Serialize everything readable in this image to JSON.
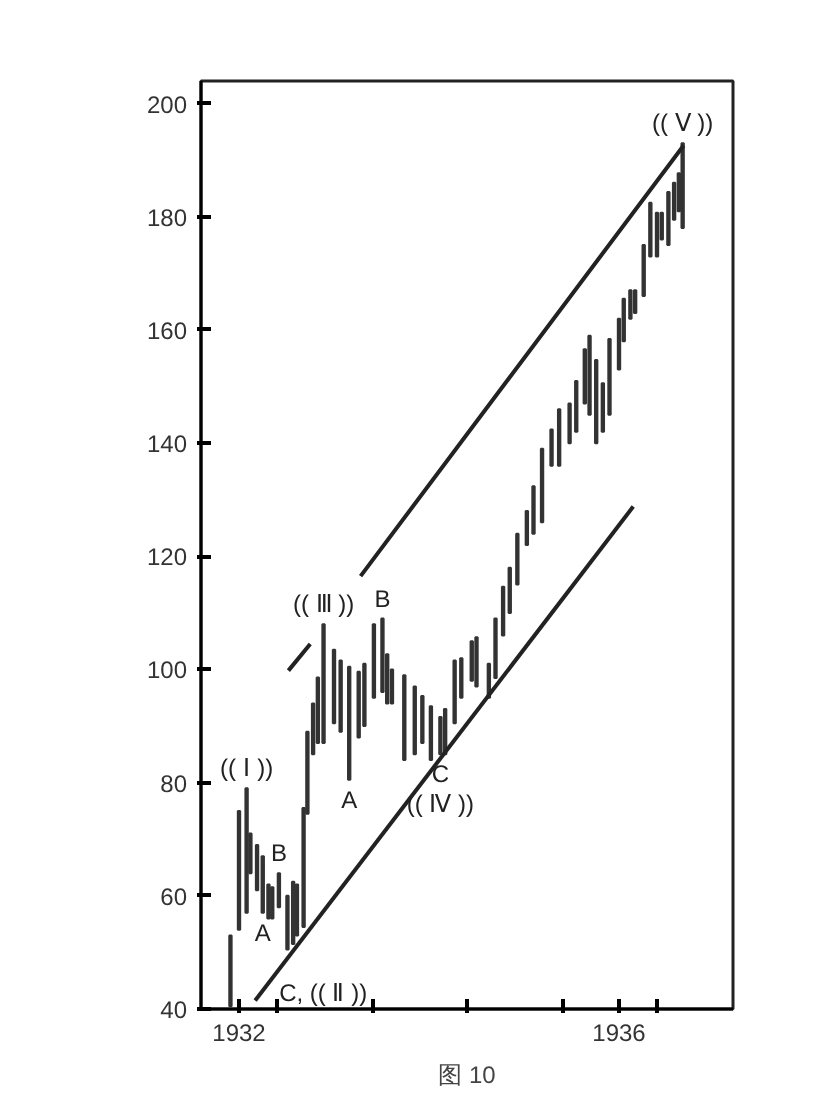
{
  "chart_data": {
    "type": "bar",
    "title": "图 10",
    "xlim": [
      1931.6,
      1937.2
    ],
    "xticks": [
      1932,
      {
        "value": 1932.4,
        "label": null
      },
      {
        "value": 1933.4,
        "label": null
      },
      {
        "value": 1934.4,
        "label": null
      },
      {
        "value": 1935.4,
        "label": null
      },
      1936,
      {
        "value": 1936.4,
        "label": null
      }
    ],
    "ylim": [
      40,
      204
    ],
    "yticks": [
      40,
      60,
      80,
      100,
      120,
      140,
      160,
      180,
      200
    ],
    "series": [
      {
        "color": "#333333",
        "x": [
          1931.91,
          1932.0,
          1932.08,
          1932.12,
          1932.19,
          1932.25,
          1932.31,
          1932.35,
          1932.42,
          1932.51,
          1932.57,
          1932.61,
          1932.68,
          1932.72,
          1932.78,
          1932.83,
          1932.89,
          1933.0,
          1933.07,
          1933.16,
          1933.26,
          1933.32,
          1933.42,
          1933.51,
          1933.56,
          1933.61,
          1933.74,
          1933.85,
          1933.93,
          1934.02,
          1934.12,
          1934.17,
          1934.27,
          1934.34,
          1934.45,
          1934.5,
          1934.63,
          1934.7,
          1934.78,
          1934.85,
          1934.93,
          1935.03,
          1935.1,
          1935.19,
          1935.29,
          1935.37,
          1935.48,
          1935.55,
          1935.64,
          1935.69,
          1935.76,
          1935.83,
          1935.9,
          1936.0,
          1936.05,
          1936.12,
          1936.17,
          1936.26,
          1936.33,
          1936.4,
          1936.45,
          1936.52,
          1936.58,
          1936.63,
          1936.67
        ],
        "base": [
          40.5,
          54,
          57,
          64,
          61,
          57,
          56,
          56,
          58,
          50.5,
          51.5,
          53,
          54.5,
          74.5,
          85,
          87,
          87,
          90.5,
          89,
          80.5,
          88,
          90,
          95,
          96,
          94,
          94,
          84,
          85,
          87,
          84,
          85,
          85,
          90.5,
          95,
          98,
          97,
          95,
          98.5,
          106,
          110,
          115,
          122,
          124,
          126,
          136,
          136,
          140,
          142,
          147,
          145,
          140,
          142,
          145,
          153,
          158,
          162,
          163,
          166,
          173,
          173,
          176,
          175,
          179.5,
          181,
          178
        ],
        "values": [
          12.5,
          21,
          22,
          7,
          8,
          10,
          6,
          5.5,
          6,
          9.5,
          11,
          9,
          21,
          14.5,
          9,
          11.6,
          21,
          13,
          12.6,
          20,
          11.6,
          11,
          13,
          13,
          8.7,
          6,
          15,
          12,
          8.3,
          9.5,
          6.6,
          8,
          11.1,
          7,
          7,
          8.7,
          6,
          10.5,
          8.6,
          8,
          9,
          6,
          8.4,
          13,
          6.4,
          10,
          7,
          9,
          9.6,
          14,
          14.7,
          8.6,
          13.4,
          9,
          7.5,
          5,
          4,
          9,
          9.5,
          7.7,
          4.7,
          9.4,
          6.5,
          6.7,
          15
        ]
      },
      {
        "type": "line",
        "color": "#222222",
        "x": [
          1932.52,
          1932.75,
          1933.0,
          1933.28,
          1936.68
        ],
        "values": [
          99.8,
          104.5,
          null,
          116.5,
          192.6
        ]
      },
      {
        "type": "line",
        "color": "#222222",
        "x": [
          1932.17,
          1936.15
        ],
        "values": [
          41.5,
          128.8
        ]
      }
    ],
    "annotations": [
      {
        "text": "(( Ⅴ ))",
        "x": 1936.67,
        "y": 193
      },
      {
        "text": "(( Ⅲ ))",
        "x": 1932.89,
        "y": 108
      },
      {
        "text": "B",
        "x": 1933.51,
        "y": 109
      },
      {
        "text": "(( Ⅰ ))",
        "x": 1932.08,
        "y": 79
      },
      {
        "text": "B",
        "x": 1932.42,
        "y": 64
      },
      {
        "text": "A",
        "x": 1932.25,
        "y": 57
      },
      {
        "text": "A",
        "x": 1933.16,
        "y": 80.5
      },
      {
        "text": "C",
        "x": 1934.12,
        "y": 85
      },
      {
        "text": "(( Ⅳ ))",
        "x": 1934.12,
        "y": 85
      },
      {
        "text": "C, (( Ⅱ ))",
        "x": 1932.17,
        "y": 41.5
      }
    ]
  }
}
